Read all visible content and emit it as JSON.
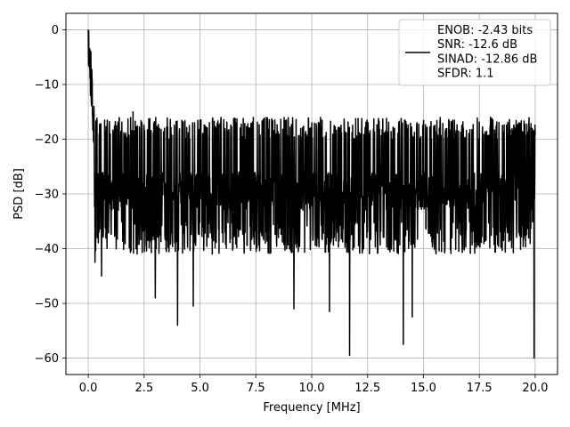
{
  "chart_data": {
    "type": "line",
    "xlabel": "Frequency [MHz]",
    "ylabel": "PSD [dB]",
    "xlim": [
      -1.0,
      21.0
    ],
    "ylim": [
      -63.0,
      3.0
    ],
    "xticks": [
      0.0,
      2.5,
      5.0,
      7.5,
      10.0,
      12.5,
      15.0,
      17.5,
      20.0
    ],
    "xtick_labels": [
      "0.0",
      "2.5",
      "5.0",
      "7.5",
      "10.0",
      "12.5",
      "15.0",
      "17.5",
      "20.0"
    ],
    "yticks": [
      0,
      -10,
      -20,
      -30,
      -40,
      -50,
      -60
    ],
    "ytick_labels": [
      "0",
      "−10",
      "−20",
      "−30",
      "−40",
      "−50",
      "−60"
    ],
    "grid": true,
    "legend_position": "top-right",
    "series": [
      {
        "name": "ENOB: -2.43 bits\nSNR: -12.6 dB\nSINAD: -12.86 dB\nSFDR: 1.1",
        "color": "#000000",
        "x_range": [
          0.0,
          20.0
        ],
        "samples": 2048,
        "noise_floor_mean_db": -29.5,
        "noise_band_db": [
          -38.0,
          -19.0
        ],
        "peaks": [
          {
            "x": 0.0,
            "y": 0.0
          },
          {
            "x": 0.03,
            "y": -5.0
          },
          {
            "x": 0.1,
            "y": -12.0
          },
          {
            "x": 0.25,
            "y": -14.0
          },
          {
            "x": 2.0,
            "y": -15.0
          },
          {
            "x": 5.0,
            "y": -16.5
          },
          {
            "x": 10.0,
            "y": -17.0
          },
          {
            "x": 15.0,
            "y": -18.0
          },
          {
            "x": 18.0,
            "y": -16.0
          }
        ],
        "dips": [
          {
            "x": 0.3,
            "y": -42.5
          },
          {
            "x": 0.6,
            "y": -45.0
          },
          {
            "x": 3.0,
            "y": -49.0
          },
          {
            "x": 4.0,
            "y": -54.0
          },
          {
            "x": 4.7,
            "y": -50.5
          },
          {
            "x": 9.2,
            "y": -51.0
          },
          {
            "x": 10.8,
            "y": -51.5
          },
          {
            "x": 11.7,
            "y": -59.5
          },
          {
            "x": 14.1,
            "y": -57.5
          },
          {
            "x": 14.5,
            "y": -52.5
          },
          {
            "x": 19.95,
            "y": -60.0
          }
        ]
      }
    ]
  }
}
